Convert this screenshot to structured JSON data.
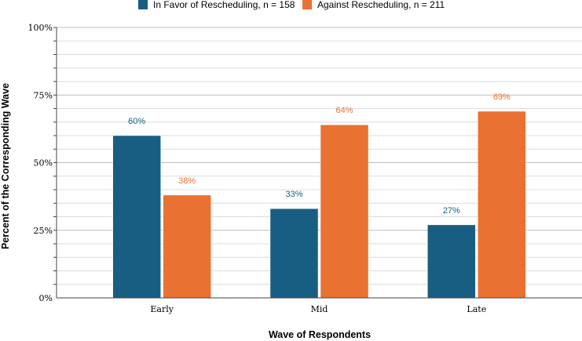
{
  "chart_data": {
    "type": "bar",
    "title": "",
    "categories": [
      "Early",
      "Mid",
      "Late"
    ],
    "series": [
      {
        "name": "In Favor of Rescheduling, n = 158",
        "values": [
          60,
          33,
          27
        ],
        "labels": [
          "60%",
          "33%",
          "27%"
        ],
        "color": "#175e82"
      },
      {
        "name": "Against Rescheduling, n = 211",
        "values": [
          38,
          64,
          69
        ],
        "labels": [
          "38%",
          "64%",
          "69%"
        ],
        "color": "#e97132"
      }
    ],
    "xlabel": "Wave of Respondents",
    "ylabel": "Percent of the Corresponding Wave",
    "ylim": [
      0,
      100
    ],
    "yticks": [
      0,
      25,
      50,
      75,
      100
    ],
    "ytick_labels": [
      "0%",
      "25%",
      "50%",
      "75%",
      "100%"
    ],
    "grid": true,
    "legend_position": "top-center"
  }
}
